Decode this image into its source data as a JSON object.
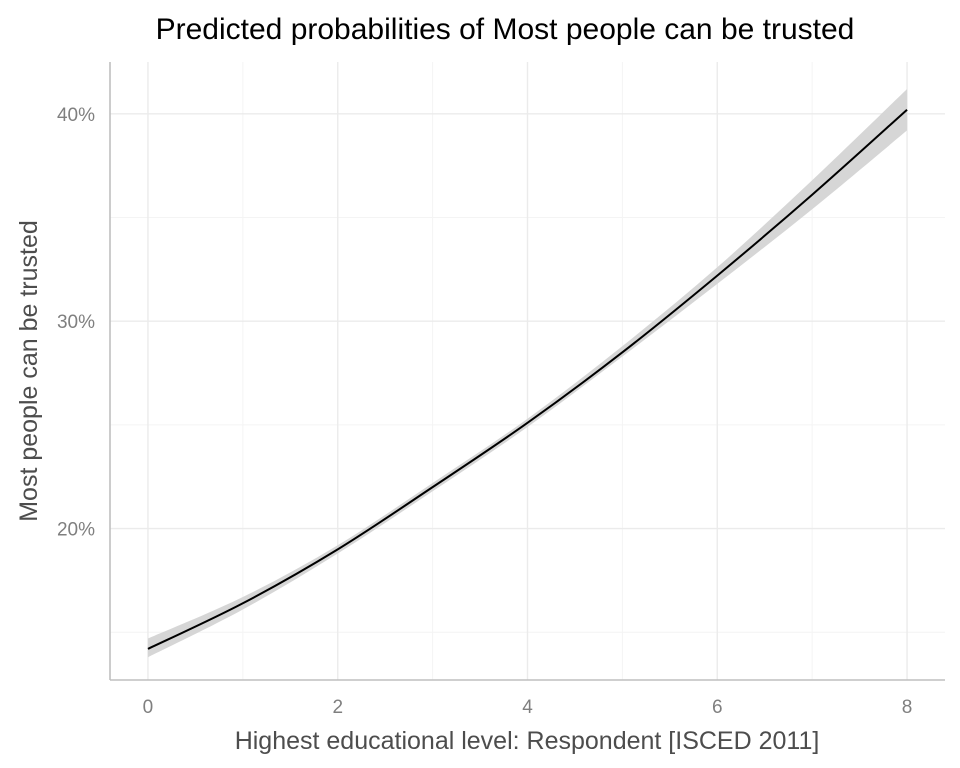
{
  "chart_data": {
    "type": "line",
    "title": "Predicted probabilities of Most people can be trusted",
    "xlabel": "Highest educational level: Respondent [ISCED 2011]",
    "ylabel": "Most people can be trusted",
    "xlim": [
      -0.4,
      8.4
    ],
    "ylim": [
      0.127,
      0.425
    ],
    "x_ticks": [
      0,
      2,
      4,
      6,
      8
    ],
    "x_tick_labels": [
      "0",
      "2",
      "4",
      "6",
      "8"
    ],
    "y_ticks": [
      0.2,
      0.3,
      0.4
    ],
    "y_tick_labels": [
      "20%",
      "30%",
      "40%"
    ],
    "y_minor_ticks": [
      0.15,
      0.25,
      0.35
    ],
    "x_minor_ticks": [
      -1,
      1,
      3,
      5,
      7
    ],
    "grid": true,
    "legend": "none",
    "series": [
      {
        "x": [
          0,
          1,
          2,
          3,
          4,
          5,
          6,
          7,
          8
        ],
        "y": [
          0.142,
          0.164,
          0.19,
          0.22,
          0.251,
          0.285,
          0.322,
          0.361,
          0.402
        ],
        "ci_low": [
          0.138,
          0.161,
          0.188,
          0.218,
          0.249,
          0.283,
          0.318,
          0.354,
          0.392
        ],
        "ci_high": [
          0.147,
          0.167,
          0.192,
          0.222,
          0.253,
          0.288,
          0.326,
          0.368,
          0.412
        ]
      }
    ],
    "colors": {
      "line": "#000000",
      "ribbon": "#d6d6d6",
      "grid_major": "#ebebeb",
      "grid_minor": "#f4f4f4",
      "axis": "#bfbfbf"
    }
  }
}
